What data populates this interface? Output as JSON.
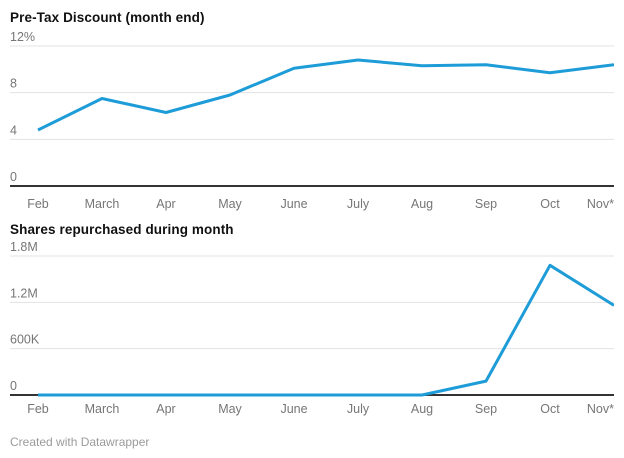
{
  "card": {
    "footer": "Created with Datawrapper"
  },
  "colors": {
    "line": "#1e9cd8",
    "grid": "#e3e3e3",
    "axis": "#333333",
    "tick_text": "#767676",
    "footer_text": "#9b9b9b"
  },
  "chart_data": [
    {
      "type": "line",
      "title": "Pre-Tax Discount (month end)",
      "categories": [
        "Feb",
        "March",
        "Apr",
        "May",
        "June",
        "July",
        "Aug",
        "Sep",
        "Oct",
        "Nov*"
      ],
      "values": [
        4.8,
        7.5,
        6.3,
        7.8,
        10.1,
        10.8,
        10.3,
        10.4,
        9.7,
        10.4
      ],
      "xlabel": "",
      "ylabel": "",
      "ylim": [
        0,
        12
      ],
      "yticks": [
        {
          "label": "12%",
          "value": 12
        },
        {
          "label": "8",
          "value": 8
        },
        {
          "label": "4",
          "value": 4
        },
        {
          "label": "0",
          "value": 0
        }
      ],
      "grid": true,
      "legend": false
    },
    {
      "type": "line",
      "title": "Shares repurchased during month",
      "categories": [
        "Feb",
        "March",
        "Apr",
        "May",
        "June",
        "July",
        "Aug",
        "Sep",
        "Oct",
        "Nov*"
      ],
      "values": [
        0,
        0,
        0,
        0,
        0,
        0,
        0,
        180000,
        1680000,
        1160000
      ],
      "xlabel": "",
      "ylabel": "",
      "ylim": [
        0,
        1800000
      ],
      "yticks": [
        {
          "label": "1.8M",
          "value": 1800000
        },
        {
          "label": "1.2M",
          "value": 1200000
        },
        {
          "label": "600K",
          "value": 600000
        },
        {
          "label": "0",
          "value": 0
        }
      ],
      "grid": true,
      "legend": false
    }
  ]
}
